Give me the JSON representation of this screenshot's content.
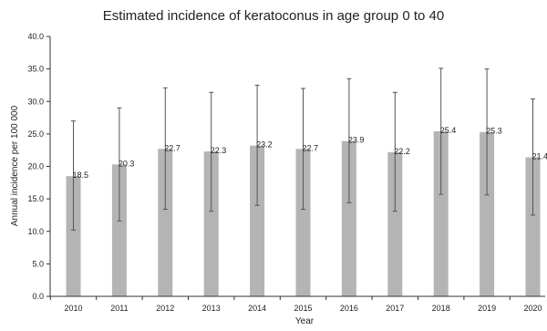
{
  "chart_data": {
    "type": "bar",
    "title": "Estimated incidence of keratoconus in age group 0 to 40",
    "xlabel": "Year",
    "ylabel": "Annual incidence per 100 000",
    "categories": [
      "2010",
      "2011",
      "2012",
      "2013",
      "2014",
      "2015",
      "2016",
      "2017",
      "2018",
      "2019",
      "2020"
    ],
    "values": [
      18.5,
      20.3,
      22.7,
      22.3,
      23.2,
      22.7,
      23.9,
      22.2,
      25.4,
      25.3,
      21.4
    ],
    "data_labels": [
      "18.5",
      "20.3",
      "22.7",
      "22.3",
      "23.2",
      "22.7",
      "23.9",
      "22.2",
      "25.4",
      "25.3",
      "21.4"
    ],
    "error_low": [
      10.2,
      11.6,
      13.4,
      13.1,
      14.0,
      13.4,
      14.4,
      13.1,
      15.7,
      15.6,
      12.5
    ],
    "error_high": [
      27.0,
      29.0,
      32.1,
      31.4,
      32.5,
      32.0,
      33.5,
      31.4,
      35.1,
      35.0,
      30.4
    ],
    "ylim": [
      0,
      40
    ],
    "yticks": [
      "0.0",
      "5.0",
      "10.0",
      "15.0",
      "20.0",
      "25.0",
      "30.0",
      "35.0",
      "40.0"
    ],
    "grid": false,
    "bar_color": "#b4b4b4",
    "error_bar_color": "#555555",
    "axis_color": "#333333"
  }
}
